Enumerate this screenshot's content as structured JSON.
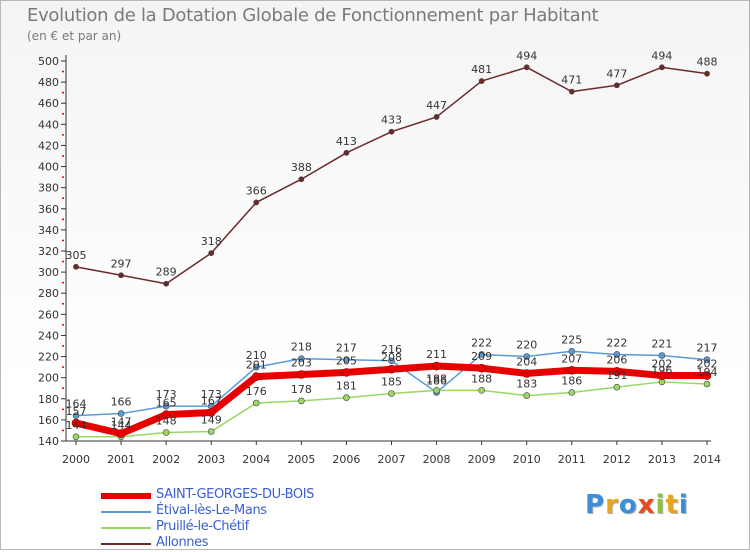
{
  "header": {
    "title": "Evolution de la Dotation Globale de Fonctionnement par Habitant",
    "subtitle": "(en € et par an)"
  },
  "logo": {
    "letters": [
      "P",
      "r",
      "o",
      "x",
      "i",
      "t",
      "i"
    ],
    "colors": [
      "#3a8fd6",
      "#e8a51a",
      "#3a8fd6",
      "#e84a1a",
      "#8ac43a",
      "#e8a51a",
      "#3a8fd6"
    ]
  },
  "chart_data": {
    "type": "line",
    "title": "Evolution de la Dotation Globale de Fonctionnement par Habitant",
    "subtitle": "(en € et par an)",
    "x": [
      "2000",
      "2001",
      "2002",
      "2003",
      "2004",
      "2005",
      "2006",
      "2007",
      "2008",
      "2009",
      "2010",
      "2011",
      "2012",
      "2013",
      "2014"
    ],
    "ylim": [
      140,
      500
    ],
    "yticks": [
      140,
      160,
      180,
      200,
      220,
      240,
      260,
      280,
      300,
      320,
      340,
      360,
      380,
      400,
      420,
      440,
      460,
      480,
      500
    ],
    "grid": false,
    "legend_position": "bottom-left",
    "series": [
      {
        "name": "SAINT-GEORGES-DU-BOIS",
        "color": "#e80000",
        "values": [
          157,
          147,
          165,
          167,
          201,
          203,
          205,
          208,
          211,
          209,
          204,
          207,
          206,
          202,
          202
        ],
        "labels": [
          "157",
          "147",
          "165",
          "167",
          "201",
          "203",
          "205",
          "208",
          "211",
          "209",
          "204",
          "207",
          "206",
          "202",
          "202"
        ]
      },
      {
        "name": "Étival-lès-Le-Mans",
        "color": "#5b9bd5",
        "values": [
          164,
          166,
          173,
          173,
          210,
          218,
          217,
          216,
          186,
          222,
          220,
          225,
          222,
          221,
          217
        ],
        "labels": [
          "164",
          "166",
          "173",
          "173",
          "210",
          "218",
          "217",
          "216",
          "186",
          "222",
          "220",
          "225",
          "222",
          "221",
          "217"
        ]
      },
      {
        "name": "Pruillé-le-Chétif",
        "color": "#9ad864",
        "values": [
          144,
          144,
          148,
          149,
          176,
          178,
          181,
          185,
          188,
          188,
          183,
          186,
          191,
          196,
          194
        ],
        "labels": [
          "144",
          "144",
          "148",
          "149",
          "176",
          "178",
          "181",
          "185",
          "188",
          "188",
          "183",
          "186",
          "191",
          "196",
          "194"
        ]
      },
      {
        "name": "Allonnes",
        "color": "#6b2a2a",
        "values": [
          305,
          297,
          289,
          318,
          366,
          388,
          413,
          433,
          447,
          481,
          494,
          471,
          477,
          494,
          488
        ],
        "labels": [
          "305",
          "297",
          "289",
          "318",
          "366",
          "388",
          "413",
          "433",
          "447",
          "481",
          "494",
          "471",
          "477",
          "494",
          "488"
        ]
      }
    ]
  }
}
